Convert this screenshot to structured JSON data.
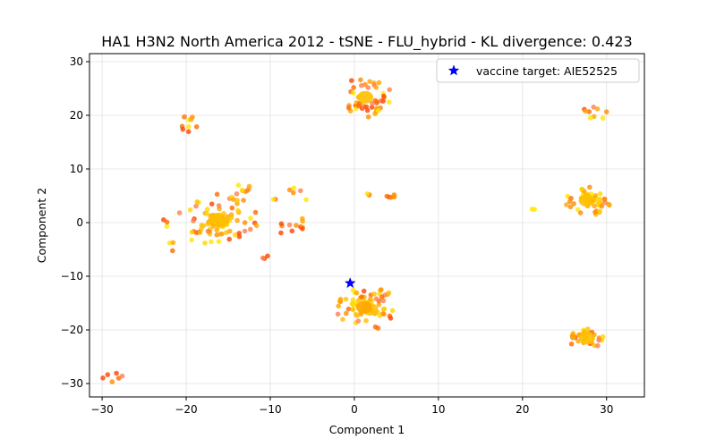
{
  "chart_data": {
    "type": "scatter",
    "title": "HA1 H3N2 North America 2012 - tSNE - FLU_hybrid - KL divergence: 0.423",
    "xlabel": "Component 1",
    "ylabel": "Component 2",
    "xlim": [
      -31.5,
      34.5
    ],
    "ylim": [
      -32.5,
      31.5
    ],
    "xticks": [
      -30,
      -20,
      -10,
      0,
      10,
      20,
      30
    ],
    "yticks": [
      -30,
      -20,
      -10,
      0,
      10,
      20,
      30
    ],
    "grid": true,
    "legend_position": "top-right",
    "legend": {
      "label": "vaccine target: AIE52525",
      "marker": "star",
      "color": "#0000ff"
    },
    "vaccine_target": {
      "x": -0.5,
      "y": -11.3
    },
    "colors": [
      "#ffd700",
      "#ffc000",
      "#ffa500",
      "#ff8c00",
      "#ff6a00",
      "#ff4500",
      "#ffe600",
      "#ff7f50"
    ],
    "clusters": [
      {
        "cx": 1.5,
        "cy": 23.5,
        "rx": 2.8,
        "ry": 4.5,
        "n": 46,
        "core": 1,
        "dense": false
      },
      {
        "cx": -19.5,
        "cy": 18.5,
        "rx": 1.4,
        "ry": 1.6,
        "n": 10,
        "core": 0,
        "dense": false
      },
      {
        "cx": 28.5,
        "cy": 20.5,
        "rx": 1.6,
        "ry": 1.8,
        "n": 9,
        "core": 0,
        "dense": false
      },
      {
        "cx": -16,
        "cy": 0.5,
        "rx": 5,
        "ry": 4.8,
        "n": 85,
        "core": 3,
        "dense": true
      },
      {
        "cx": -13.5,
        "cy": 6.5,
        "rx": 1.5,
        "ry": 1.2,
        "n": 8,
        "core": 0,
        "dense": false
      },
      {
        "cx": -8,
        "cy": -1,
        "rx": 2.2,
        "ry": 1.2,
        "n": 9,
        "core": 0,
        "dense": false
      },
      {
        "cx": -7,
        "cy": 6,
        "rx": 0.8,
        "ry": 0.5,
        "n": 4,
        "core": 0,
        "dense": false
      },
      {
        "cx": 4.5,
        "cy": 5,
        "rx": 0.9,
        "ry": 0.3,
        "n": 6,
        "core": 0,
        "dense": false
      },
      {
        "cx": 1.5,
        "cy": 5.2,
        "rx": 0.3,
        "ry": 0.3,
        "n": 3,
        "core": 0,
        "dense": false
      },
      {
        "cx": 28,
        "cy": 4,
        "rx": 3,
        "ry": 2.6,
        "n": 52,
        "core": 1,
        "dense": true
      },
      {
        "cx": 1.5,
        "cy": -16,
        "rx": 3.8,
        "ry": 4,
        "n": 70,
        "core": 2,
        "dense": true
      },
      {
        "cx": 27.5,
        "cy": -21.5,
        "rx": 2.2,
        "ry": 2,
        "n": 32,
        "core": 1,
        "dense": true
      },
      {
        "cx": -28.5,
        "cy": -28.8,
        "rx": 1.5,
        "ry": 1.2,
        "n": 6,
        "core": 0,
        "dense": false
      },
      {
        "cx": 21.3,
        "cy": 2.6,
        "rx": 0.2,
        "ry": 0.2,
        "n": 2,
        "core": 0,
        "dense": false
      },
      {
        "cx": -10.5,
        "cy": -6.5,
        "rx": 0.6,
        "ry": 0.4,
        "n": 3,
        "core": 0,
        "dense": false
      },
      {
        "cx": -20.5,
        "cy": -4,
        "rx": 2,
        "ry": 2,
        "n": 4,
        "core": 0,
        "dense": false
      },
      {
        "cx": -22.5,
        "cy": 0,
        "rx": 0.5,
        "ry": 3,
        "n": 3,
        "core": 0,
        "dense": false
      },
      {
        "cx": -5.5,
        "cy": 2,
        "rx": 1,
        "ry": 2.5,
        "n": 3,
        "core": 0,
        "dense": false
      },
      {
        "cx": -9.5,
        "cy": 4.5,
        "rx": 0.3,
        "ry": 0.3,
        "n": 2,
        "core": 0,
        "dense": false
      }
    ]
  }
}
